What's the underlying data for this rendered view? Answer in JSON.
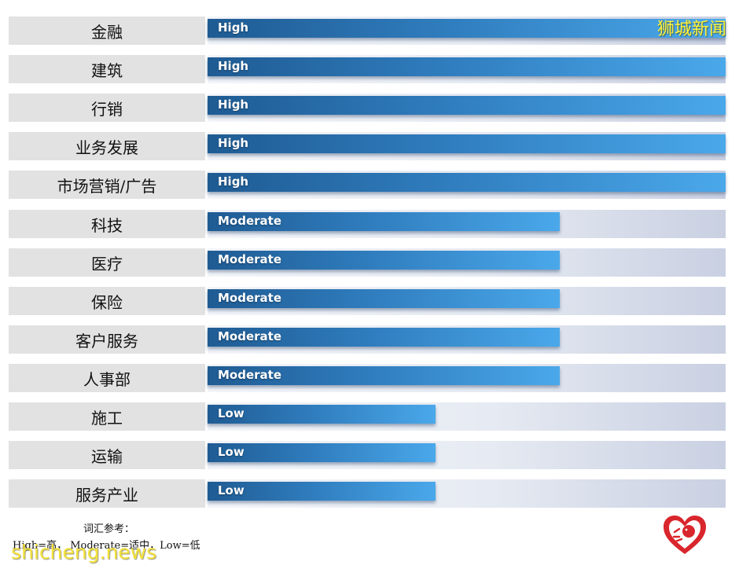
{
  "watermark": {
    "top_right": "狮城新闻",
    "site": "shicheng.news"
  },
  "legend": {
    "title": "词汇参考：",
    "text": "High=高，  Moderate=适中，Low=低"
  },
  "colors": {
    "bar_start": "#1f5b93",
    "bar_end": "#4aa8ea",
    "label_bg": "#e2e2e2",
    "watermark": "#fff23a",
    "logo_red": "#d8262c"
  },
  "logo_icon": "heart-lion-badge-icon",
  "chart_data": {
    "type": "bar",
    "orientation": "horizontal",
    "categories": [
      "金融",
      "建筑",
      "行销",
      "业务发展",
      "市场营销/广告",
      "科技",
      "医疗",
      "保险",
      "客户服务",
      "人事部",
      "施工",
      "运输",
      "服务产业"
    ],
    "levels": [
      "High",
      "High",
      "High",
      "High",
      "High",
      "Moderate",
      "Moderate",
      "Moderate",
      "Moderate",
      "Moderate",
      "Low",
      "Low",
      "Low"
    ],
    "values": [
      1.0,
      1.0,
      1.0,
      1.0,
      1.0,
      0.68,
      0.68,
      0.68,
      0.68,
      0.68,
      0.44,
      0.44,
      0.44
    ],
    "xlim": [
      0,
      1
    ],
    "grid": false
  }
}
